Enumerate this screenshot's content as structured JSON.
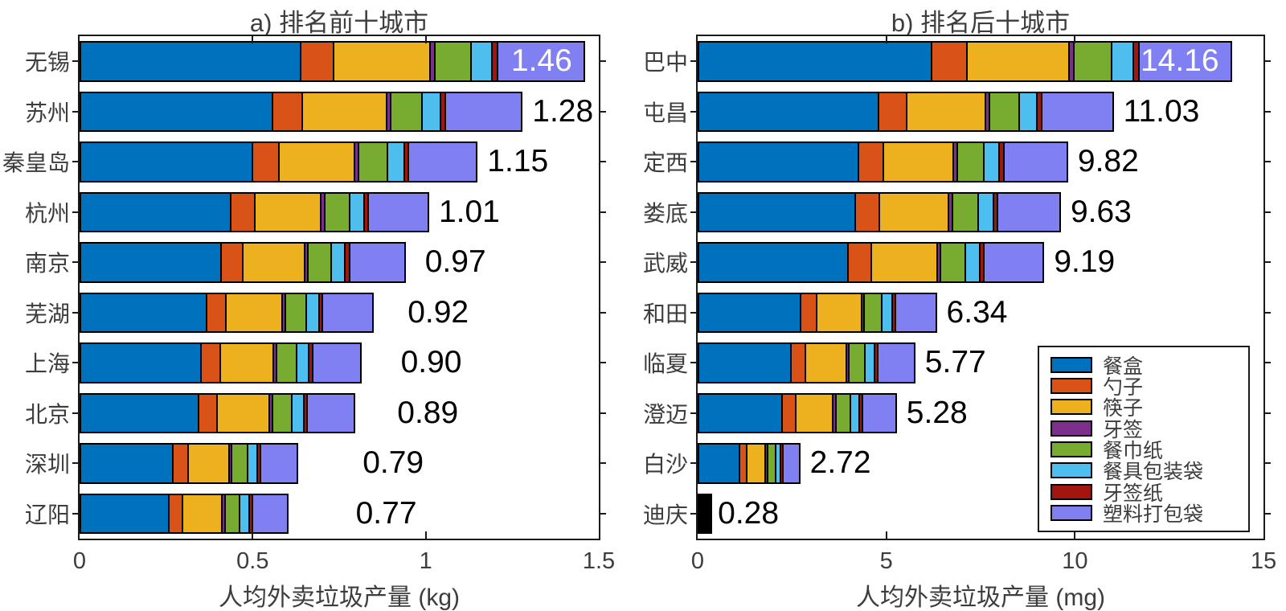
{
  "figure": {
    "background": "#ffffff"
  },
  "series_names": [
    "餐盒",
    "勺子",
    "筷子",
    "牙签",
    "餐巾纸",
    "餐具包装袋",
    "牙签纸",
    "塑料打包袋"
  ],
  "series_colors": [
    "#0072BD",
    "#D95319",
    "#EDB120",
    "#7E2F8E",
    "#77AC30",
    "#4DBEEE",
    "#A2160F",
    "#8080F2"
  ],
  "legend": {
    "items": [
      {
        "label": "餐盒",
        "color": "#0072BD"
      },
      {
        "label": "勺子",
        "color": "#D95319"
      },
      {
        "label": "筷子",
        "color": "#EDB120"
      },
      {
        "label": "牙签",
        "color": "#7E2F8E"
      },
      {
        "label": "餐巾纸",
        "color": "#77AC30"
      },
      {
        "label": "餐具包装袋",
        "color": "#4DBEEE"
      },
      {
        "label": "牙签纸",
        "color": "#A2160F"
      },
      {
        "label": "塑料打包袋",
        "color": "#8080F2"
      }
    ]
  },
  "chart_data": [
    {
      "type": "bar",
      "orientation": "horizontal-stacked",
      "title": "a) 排名前十城市",
      "xlabel": "人均外卖垃圾产量 (kg)",
      "xlim": [
        0,
        1.5
      ],
      "xticks": [
        "0",
        "0.5",
        "1",
        "1.5"
      ],
      "grid": false,
      "categories": [
        "无锡",
        "苏州",
        "秦皇岛",
        "杭州",
        "南京",
        "芜湖",
        "上海",
        "北京",
        "深圳",
        "辽阳"
      ],
      "totals": [
        "1.46",
        "1.28",
        "1.15",
        "1.01",
        "0.97",
        "0.92",
        "0.90",
        "0.89",
        "0.79",
        "0.77"
      ],
      "label_inside": [
        true,
        false,
        false,
        false,
        false,
        false,
        false,
        false,
        false,
        false
      ],
      "series": [
        {
          "name": "餐盒",
          "values": [
            0.65,
            0.57,
            0.512,
            0.449,
            0.432,
            0.409,
            0.401,
            0.396,
            0.352,
            0.343
          ]
        },
        {
          "name": "勺子",
          "values": [
            0.095,
            0.083,
            0.075,
            0.066,
            0.063,
            0.06,
            0.059,
            0.058,
            0.051,
            0.05
          ]
        },
        {
          "name": "筷子",
          "values": [
            0.282,
            0.247,
            0.222,
            0.195,
            0.187,
            0.178,
            0.174,
            0.172,
            0.152,
            0.149
          ]
        },
        {
          "name": "牙签",
          "values": [
            0.009,
            0.008,
            0.007,
            0.006,
            0.006,
            0.006,
            0.005,
            0.005,
            0.005,
            0.005
          ]
        },
        {
          "name": "餐巾纸",
          "values": [
            0.102,
            0.09,
            0.081,
            0.071,
            0.068,
            0.064,
            0.063,
            0.062,
            0.055,
            0.054
          ]
        },
        {
          "name": "餐具包装袋",
          "values": [
            0.057,
            0.05,
            0.045,
            0.039,
            0.038,
            0.036,
            0.035,
            0.035,
            0.031,
            0.03
          ]
        },
        {
          "name": "牙签纸",
          "values": [
            0.012,
            0.01,
            0.009,
            0.008,
            0.008,
            0.007,
            0.007,
            0.007,
            0.006,
            0.006
          ]
        },
        {
          "name": "塑料打包袋",
          "values": [
            0.254,
            0.223,
            0.2,
            0.176,
            0.169,
            0.16,
            0.157,
            0.155,
            0.137,
            0.134
          ]
        }
      ]
    },
    {
      "type": "bar",
      "orientation": "horizontal-stacked",
      "title": "b) 排名后十城市",
      "xlabel": "人均外卖垃圾产量 (mg)",
      "xlim": [
        0,
        15
      ],
      "xticks": [
        "0",
        "5",
        "10",
        "15"
      ],
      "grid": false,
      "categories": [
        "巴中",
        "屯昌",
        "定西",
        "娄底",
        "武威",
        "和田",
        "临夏",
        "澄迈",
        "白沙",
        "迪庆"
      ],
      "totals": [
        "14.16",
        "11.03",
        "9.82",
        "9.63",
        "9.19",
        "6.34",
        "5.77",
        "5.28",
        "2.72",
        "0.28"
      ],
      "label_inside": [
        true,
        false,
        false,
        false,
        false,
        false,
        false,
        false,
        false,
        false
      ],
      "series": [
        {
          "name": "餐盒",
          "values": [
            6.3,
            4.91,
            4.37,
            4.29,
            4.09,
            2.82,
            2.57,
            2.35,
            1.21,
            0.125
          ]
        },
        {
          "name": "勺子",
          "values": [
            0.92,
            0.72,
            0.64,
            0.63,
            0.6,
            0.41,
            0.38,
            0.34,
            0.18,
            0.018
          ]
        },
        {
          "name": "筷子",
          "values": [
            2.73,
            2.13,
            1.9,
            1.86,
            1.77,
            1.22,
            1.11,
            1.02,
            0.53,
            0.054
          ]
        },
        {
          "name": "牙签",
          "values": [
            0.08,
            0.07,
            0.06,
            0.06,
            0.06,
            0.04,
            0.03,
            0.03,
            0.02,
            0.002
          ]
        },
        {
          "name": "餐巾纸",
          "values": [
            0.99,
            0.77,
            0.69,
            0.67,
            0.64,
            0.44,
            0.4,
            0.37,
            0.19,
            0.02
          ]
        },
        {
          "name": "餐具包装袋",
          "values": [
            0.55,
            0.43,
            0.38,
            0.38,
            0.36,
            0.25,
            0.23,
            0.21,
            0.11,
            0.011
          ]
        },
        {
          "name": "牙签纸",
          "values": [
            0.11,
            0.09,
            0.08,
            0.08,
            0.07,
            0.05,
            0.05,
            0.04,
            0.02,
            0.002
          ]
        },
        {
          "name": "塑料打包袋",
          "values": [
            2.46,
            1.92,
            1.71,
            1.68,
            1.6,
            1.1,
            1.0,
            0.92,
            0.47,
            0.048
          ]
        }
      ]
    }
  ]
}
